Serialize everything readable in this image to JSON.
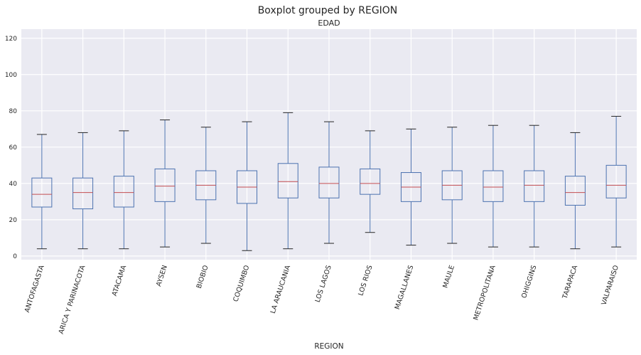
{
  "chart_data": {
    "type": "boxplot",
    "suptitle": "Boxplot grouped by REGION",
    "title": "EDAD",
    "xlabel": "REGION",
    "ylabel": "",
    "ylim": [
      -2,
      125
    ],
    "yticks": [
      0,
      20,
      40,
      60,
      80,
      100,
      120
    ],
    "grid": true,
    "colors": {
      "background": "#eaeaf2",
      "grid": "#ffffff",
      "box": "#4c72b0",
      "median": "#c44e52",
      "cap": "#262626"
    },
    "categories": [
      "ANTOFAGASTA",
      "ARICA Y PARINACOTA",
      "ATACAMA",
      "AYSEN",
      "BIOBIO",
      "COQUIMBO",
      "LA ARAUCANIA",
      "LOS LAGOS",
      "LOS RIOS",
      "MAGALLANES",
      "MAULE",
      "METROPOLITANA",
      "OHIGGINS",
      "TARAPACA",
      "VALPARAISO"
    ],
    "boxes": [
      {
        "min": 4,
        "q1": 27,
        "median": 34,
        "q3": 43,
        "max": 67
      },
      {
        "min": 4,
        "q1": 26,
        "median": 35,
        "q3": 43,
        "max": 68
      },
      {
        "min": 4,
        "q1": 27,
        "median": 35,
        "q3": 44,
        "max": 69
      },
      {
        "min": 5,
        "q1": 30,
        "median": 38.5,
        "q3": 48,
        "max": 75
      },
      {
        "min": 7,
        "q1": 31,
        "median": 39,
        "q3": 47,
        "max": 71
      },
      {
        "min": 3,
        "q1": 29,
        "median": 38,
        "q3": 47,
        "max": 74
      },
      {
        "min": 4,
        "q1": 32,
        "median": 41,
        "q3": 51,
        "max": 79
      },
      {
        "min": 7,
        "q1": 32,
        "median": 40,
        "q3": 49,
        "max": 74
      },
      {
        "min": 13,
        "q1": 34,
        "median": 40,
        "q3": 48,
        "max": 69
      },
      {
        "min": 6,
        "q1": 30,
        "median": 38,
        "q3": 46,
        "max": 70
      },
      {
        "min": 7,
        "q1": 31,
        "median": 39,
        "q3": 47,
        "max": 71
      },
      {
        "min": 5,
        "q1": 30,
        "median": 38,
        "q3": 47,
        "max": 72
      },
      {
        "min": 5,
        "q1": 30,
        "median": 39,
        "q3": 47,
        "max": 72
      },
      {
        "min": 4,
        "q1": 28,
        "median": 35,
        "q3": 44,
        "max": 68
      },
      {
        "min": 5,
        "q1": 32,
        "median": 39,
        "q3": 50,
        "max": 77
      }
    ]
  }
}
